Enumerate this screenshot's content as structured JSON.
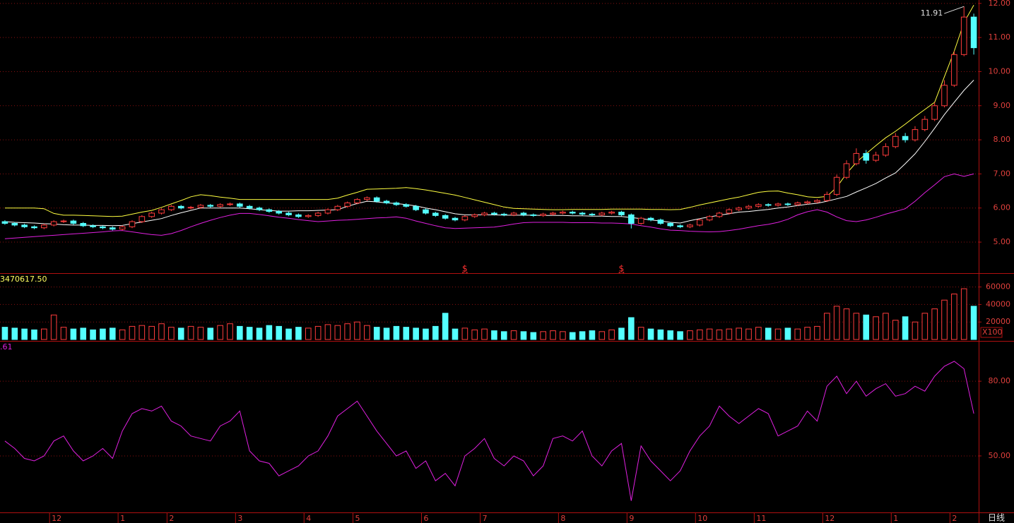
{
  "chart_data": [
    {
      "type": "candlestick",
      "up_color": "#ff3c3c",
      "down_color": "#54ffff",
      "grid": true,
      "ylim": [
        4.09,
        12.1
      ],
      "yticks": [
        {
          "value": 5,
          "label": "5.00"
        },
        {
          "value": 6,
          "label": "6.00"
        },
        {
          "value": 7,
          "label": "7.00"
        },
        {
          "value": 8,
          "label": "8.00"
        },
        {
          "value": 9,
          "label": "9.00"
        },
        {
          "value": 10,
          "label": "10.00"
        },
        {
          "value": 11,
          "label": "11.00"
        },
        {
          "value": 12,
          "label": "12.00"
        }
      ],
      "open": [
        5.6,
        5.55,
        5.5,
        5.45,
        5.42,
        5.5,
        5.6,
        5.62,
        5.55,
        5.48,
        5.45,
        5.42,
        5.38,
        5.45,
        5.6,
        5.75,
        5.85,
        5.95,
        6.05,
        6.0,
        6.02,
        6.08,
        6.05,
        6.1,
        6.12,
        6.05,
        6.0,
        5.95,
        5.9,
        5.85,
        5.8,
        5.75,
        5.78,
        5.85,
        5.95,
        6.05,
        6.15,
        6.25,
        6.3,
        6.2,
        6.15,
        6.1,
        6.05,
        5.95,
        5.85,
        5.78,
        5.7,
        5.65,
        5.75,
        5.8,
        5.85,
        5.82,
        5.8,
        5.85,
        5.8,
        5.78,
        5.82,
        5.85,
        5.88,
        5.85,
        5.82,
        5.8,
        5.85,
        5.88,
        5.8,
        5.55,
        5.7,
        5.65,
        5.55,
        5.48,
        5.45,
        5.5,
        5.65,
        5.75,
        5.85,
        5.95,
        6.0,
        6.05,
        6.1,
        6.08,
        6.12,
        6.1,
        6.15,
        6.18,
        6.22,
        6.4,
        6.9,
        7.3,
        7.6,
        7.4,
        7.55,
        7.8,
        8.1,
        8.0,
        8.3,
        8.6,
        9.0,
        9.6,
        10.5,
        11.6
      ],
      "high": [
        5.64,
        5.59,
        5.54,
        5.49,
        5.54,
        5.64,
        5.66,
        5.66,
        5.59,
        5.52,
        5.49,
        5.46,
        5.49,
        5.64,
        5.79,
        5.89,
        5.99,
        6.09,
        6.09,
        6.06,
        6.12,
        6.12,
        6.14,
        6.16,
        6.16,
        6.09,
        6.04,
        5.99,
        5.94,
        5.89,
        5.84,
        5.82,
        5.89,
        5.99,
        6.09,
        6.19,
        6.29,
        6.34,
        6.34,
        6.24,
        6.19,
        6.14,
        6.09,
        5.99,
        5.89,
        5.82,
        5.74,
        5.79,
        5.84,
        5.89,
        5.89,
        5.86,
        5.89,
        5.89,
        5.84,
        5.86,
        5.89,
        5.92,
        5.92,
        5.89,
        5.86,
        5.89,
        5.92,
        5.92,
        5.84,
        5.74,
        5.74,
        5.69,
        5.59,
        5.52,
        5.54,
        5.69,
        5.79,
        5.89,
        5.99,
        6.04,
        6.09,
        6.14,
        6.14,
        6.16,
        6.16,
        6.19,
        6.22,
        6.26,
        6.48,
        6.98,
        7.4,
        7.75,
        7.7,
        7.65,
        7.9,
        8.2,
        8.2,
        8.4,
        8.7,
        9.1,
        9.75,
        10.6,
        11.91,
        11.7
      ],
      "low": [
        5.51,
        5.46,
        5.41,
        5.38,
        5.38,
        5.46,
        5.56,
        5.51,
        5.44,
        5.41,
        5.38,
        5.34,
        5.34,
        5.41,
        5.56,
        5.71,
        5.81,
        5.91,
        5.96,
        5.96,
        5.98,
        6.01,
        6.01,
        6.06,
        6.01,
        5.96,
        5.91,
        5.86,
        5.81,
        5.76,
        5.71,
        5.71,
        5.74,
        5.81,
        5.91,
        6.01,
        6.11,
        6.21,
        6.16,
        6.11,
        6.06,
        6.01,
        5.91,
        5.81,
        5.74,
        5.66,
        5.61,
        5.61,
        5.71,
        5.76,
        5.78,
        5.76,
        5.76,
        5.76,
        5.74,
        5.74,
        5.78,
        5.81,
        5.81,
        5.78,
        5.76,
        5.76,
        5.81,
        5.76,
        5.4,
        5.51,
        5.61,
        5.51,
        5.44,
        5.41,
        5.41,
        5.46,
        5.61,
        5.71,
        5.81,
        5.91,
        5.96,
        6.01,
        6.04,
        6.04,
        6.06,
        6.06,
        6.11,
        6.14,
        6.18,
        6.35,
        6.85,
        7.25,
        7.3,
        7.35,
        7.5,
        7.75,
        7.92,
        7.95,
        8.25,
        8.55,
        8.95,
        9.55,
        10.45,
        10.5
      ],
      "close": [
        5.55,
        5.5,
        5.45,
        5.42,
        5.5,
        5.6,
        5.62,
        5.55,
        5.48,
        5.45,
        5.42,
        5.38,
        5.45,
        5.6,
        5.75,
        5.85,
        5.95,
        6.05,
        6.0,
        6.02,
        6.08,
        6.05,
        6.1,
        6.12,
        6.05,
        6.0,
        5.95,
        5.9,
        5.85,
        5.8,
        5.75,
        5.78,
        5.85,
        5.95,
        6.05,
        6.15,
        6.25,
        6.3,
        6.2,
        6.15,
        6.1,
        6.05,
        5.95,
        5.85,
        5.78,
        5.7,
        5.65,
        5.75,
        5.8,
        5.85,
        5.82,
        5.8,
        5.85,
        5.8,
        5.78,
        5.82,
        5.85,
        5.88,
        5.85,
        5.82,
        5.8,
        5.85,
        5.88,
        5.8,
        5.55,
        5.7,
        5.65,
        5.55,
        5.48,
        5.45,
        5.5,
        5.65,
        5.75,
        5.85,
        5.95,
        6.0,
        6.05,
        6.1,
        6.08,
        6.12,
        6.1,
        6.15,
        6.18,
        6.22,
        6.4,
        6.9,
        7.3,
        7.6,
        7.4,
        7.55,
        7.8,
        8.1,
        8.0,
        8.3,
        8.6,
        9.0,
        9.6,
        10.5,
        11.6,
        10.7
      ],
      "series": [
        {
          "color": "#ffff40",
          "values": [
            6.0,
            6.0,
            6.0,
            6.0,
            5.98,
            5.84,
            5.79,
            5.79,
            5.78,
            5.77,
            5.76,
            5.75,
            5.76,
            5.82,
            5.88,
            5.93,
            6.02,
            6.12,
            6.22,
            6.33,
            6.39,
            6.36,
            6.32,
            6.29,
            6.25,
            6.25,
            6.25,
            6.25,
            6.25,
            6.25,
            6.25,
            6.25,
            6.25,
            6.25,
            6.29,
            6.38,
            6.46,
            6.55,
            6.56,
            6.57,
            6.58,
            6.6,
            6.57,
            6.53,
            6.48,
            6.43,
            6.38,
            6.31,
            6.24,
            6.17,
            6.1,
            6.03,
            5.99,
            5.98,
            5.97,
            5.96,
            5.95,
            5.95,
            5.96,
            5.96,
            5.96,
            5.96,
            5.97,
            5.97,
            5.97,
            5.97,
            5.96,
            5.96,
            5.95,
            5.96,
            6.02,
            6.09,
            6.15,
            6.21,
            6.27,
            6.32,
            6.39,
            6.46,
            6.49,
            6.5,
            6.44,
            6.39,
            6.33,
            6.31,
            6.34,
            6.61,
            7.01,
            7.34,
            7.59,
            7.83,
            8.06,
            8.25,
            8.46,
            8.68,
            8.89,
            9.1,
            9.85,
            10.6,
            11.44,
            11.95
          ]
        },
        {
          "color": "#ffffff",
          "values": [
            5.6,
            5.58,
            5.57,
            5.56,
            5.54,
            5.53,
            5.51,
            5.5,
            5.5,
            5.49,
            5.49,
            5.48,
            5.49,
            5.54,
            5.59,
            5.64,
            5.69,
            5.78,
            5.86,
            5.93,
            6.0,
            6.0,
            6.0,
            6.0,
            6.0,
            5.98,
            5.95,
            5.93,
            5.91,
            5.91,
            5.92,
            5.92,
            5.93,
            5.94,
            5.95,
            6.05,
            6.13,
            6.2,
            6.18,
            6.15,
            6.13,
            6.1,
            6.06,
            6.0,
            5.95,
            5.89,
            5.83,
            5.8,
            5.8,
            5.8,
            5.8,
            5.79,
            5.79,
            5.79,
            5.79,
            5.78,
            5.78,
            5.78,
            5.77,
            5.77,
            5.76,
            5.76,
            5.75,
            5.75,
            5.72,
            5.69,
            5.65,
            5.62,
            5.58,
            5.56,
            5.63,
            5.69,
            5.74,
            5.79,
            5.83,
            5.88,
            5.9,
            5.93,
            5.96,
            6.0,
            6.03,
            6.07,
            6.11,
            6.14,
            6.2,
            6.27,
            6.34,
            6.47,
            6.59,
            6.72,
            6.88,
            7.03,
            7.3,
            7.59,
            7.95,
            8.34,
            8.74,
            9.1,
            9.45,
            9.75
          ]
        },
        {
          "color": "#e020e0",
          "values": [
            5.1,
            5.12,
            5.14,
            5.16,
            5.18,
            5.2,
            5.22,
            5.24,
            5.26,
            5.28,
            5.3,
            5.33,
            5.34,
            5.3,
            5.26,
            5.22,
            5.2,
            5.25,
            5.34,
            5.45,
            5.55,
            5.64,
            5.72,
            5.79,
            5.84,
            5.84,
            5.81,
            5.77,
            5.73,
            5.7,
            5.66,
            5.63,
            5.6,
            5.62,
            5.64,
            5.65,
            5.67,
            5.69,
            5.71,
            5.72,
            5.74,
            5.7,
            5.62,
            5.55,
            5.48,
            5.42,
            5.4,
            5.41,
            5.42,
            5.43,
            5.44,
            5.48,
            5.53,
            5.57,
            5.58,
            5.58,
            5.58,
            5.58,
            5.57,
            5.57,
            5.57,
            5.56,
            5.56,
            5.55,
            5.53,
            5.48,
            5.44,
            5.39,
            5.35,
            5.34,
            5.32,
            5.31,
            5.3,
            5.31,
            5.34,
            5.38,
            5.43,
            5.48,
            5.52,
            5.58,
            5.67,
            5.8,
            5.89,
            5.95,
            5.88,
            5.74,
            5.63,
            5.6,
            5.65,
            5.73,
            5.82,
            5.9,
            5.98,
            6.2,
            6.45,
            6.68,
            6.92,
            7.0,
            6.93,
            7.0
          ]
        }
      ],
      "markers": [
        "$",
        "$"
      ]
    },
    {
      "type": "bar",
      "title": "3470617.50",
      "unit_label": "X100",
      "grid": true,
      "ylim": [
        0,
        75000
      ],
      "yticks": [
        20000,
        40000,
        60000
      ],
      "values": [
        14000,
        13000,
        12000,
        11000,
        12000,
        28000,
        14000,
        12000,
        13000,
        11000,
        12000,
        13000,
        11000,
        15000,
        16000,
        15000,
        18000,
        14000,
        13000,
        15000,
        14000,
        13000,
        16000,
        18000,
        15000,
        14000,
        13000,
        16000,
        15000,
        12000,
        14000,
        13000,
        15000,
        17000,
        16000,
        18000,
        20000,
        16000,
        14000,
        13000,
        15000,
        14000,
        13000,
        12000,
        15000,
        30000,
        12000,
        13000,
        11000,
        12000,
        10000,
        9000,
        10000,
        9000,
        8000,
        9000,
        10000,
        9000,
        8000,
        9000,
        10000,
        9000,
        11000,
        13000,
        25000,
        14000,
        12000,
        11000,
        10000,
        9000,
        10000,
        11000,
        12000,
        11000,
        12000,
        13000,
        12000,
        14000,
        13000,
        12000,
        13000,
        12000,
        14000,
        15000,
        30000,
        38000,
        35000,
        30000,
        28000,
        26000,
        30000,
        22000,
        26000,
        20000,
        30000,
        35000,
        45000,
        52000,
        58000,
        38000
      ]
    },
    {
      "type": "line",
      "title": ".61",
      "period_label": "日线",
      "grid": true,
      "ylim": [
        27.6,
        95.9
      ],
      "yticks": [
        {
          "value": 50,
          "label": "50.00"
        },
        {
          "value": 80,
          "label": "80.00"
        }
      ],
      "categories": [
        null,
        null,
        null,
        null,
        null,
        "12",
        null,
        null,
        null,
        null,
        null,
        null,
        "1",
        null,
        null,
        null,
        null,
        "2",
        null,
        null,
        null,
        null,
        null,
        null,
        "3",
        null,
        null,
        null,
        null,
        null,
        null,
        "4",
        null,
        null,
        null,
        null,
        "5",
        null,
        null,
        null,
        null,
        null,
        null,
        "6",
        null,
        null,
        null,
        null,
        null,
        "7",
        null,
        null,
        null,
        null,
        null,
        null,
        null,
        "8",
        null,
        null,
        null,
        null,
        null,
        null,
        "9",
        null,
        null,
        null,
        null,
        null,
        null,
        "10",
        null,
        null,
        null,
        null,
        null,
        "11",
        null,
        null,
        null,
        null,
        null,
        null,
        "12",
        null,
        null,
        null,
        null,
        null,
        null,
        "1",
        null,
        null,
        null,
        null,
        null,
        "2",
        null,
        null
      ],
      "series": [
        {
          "color": "#e020e0",
          "values": [
            56,
            53,
            49,
            48,
            50,
            56,
            58,
            52,
            48,
            50,
            53,
            49,
            60,
            67,
            69,
            68,
            70,
            64,
            62,
            58,
            57,
            56,
            62,
            64,
            68,
            52,
            48,
            47,
            42,
            44,
            46,
            50,
            52,
            58,
            66,
            69,
            72,
            66,
            60,
            55,
            50,
            52,
            45,
            48,
            40,
            43,
            38,
            50,
            53,
            57,
            49,
            46,
            50,
            48,
            42,
            46,
            57,
            58,
            56,
            60,
            50,
            46,
            52,
            55,
            32,
            54,
            48,
            44,
            40,
            44,
            52,
            58,
            62,
            70,
            66,
            63,
            66,
            69,
            67,
            58,
            60,
            62,
            68,
            64,
            78,
            82,
            75,
            80,
            74,
            77,
            79,
            74,
            75,
            78,
            76,
            82,
            86,
            88,
            85,
            67
          ]
        }
      ]
    }
  ]
}
